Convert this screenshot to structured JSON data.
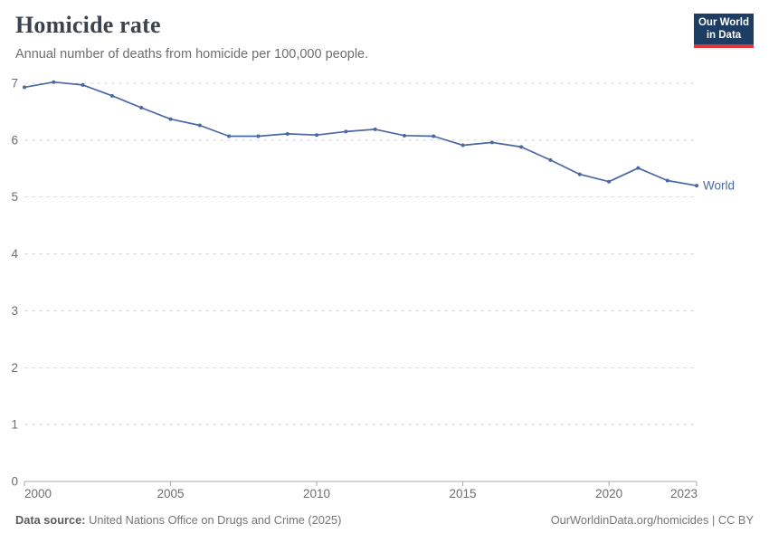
{
  "header": {
    "title": "Homicide rate",
    "subtitle": "Annual number of deaths from homicide per 100,000 people.",
    "logo": {
      "line1": "Our World",
      "line2": "in Data",
      "bg_color": "#1d3d63",
      "accent_color": "#e0373f"
    }
  },
  "chart_data": {
    "type": "line",
    "title": "Homicide rate",
    "xlabel": "",
    "ylabel": "",
    "xlim": [
      2000,
      2023
    ],
    "ylim": [
      0,
      7
    ],
    "grid": "horizontal-dashed",
    "legend_position": "end-of-line",
    "x": [
      2000,
      2001,
      2002,
      2003,
      2004,
      2005,
      2006,
      2007,
      2008,
      2009,
      2010,
      2011,
      2012,
      2013,
      2014,
      2015,
      2016,
      2017,
      2018,
      2019,
      2020,
      2021,
      2022,
      2023
    ],
    "series": [
      {
        "name": "World",
        "color": "#4a68a4",
        "values": [
          6.93,
          7.02,
          6.97,
          6.78,
          6.57,
          6.37,
          6.26,
          6.07,
          6.07,
          6.11,
          6.09,
          6.15,
          6.19,
          6.08,
          6.07,
          5.91,
          5.96,
          5.88,
          5.65,
          5.4,
          5.27,
          5.51,
          5.29,
          5.2
        ]
      }
    ],
    "yticks": [
      0,
      1,
      2,
      3,
      4,
      5,
      6,
      7
    ],
    "xticks": [
      2000,
      2005,
      2010,
      2015,
      2020,
      2023
    ]
  },
  "footer": {
    "datasource_label": "Data source:",
    "datasource_value": "United Nations Office on Drugs and Crime (2025)",
    "rights": "OurWorldinData.org/homicides | CC BY"
  }
}
